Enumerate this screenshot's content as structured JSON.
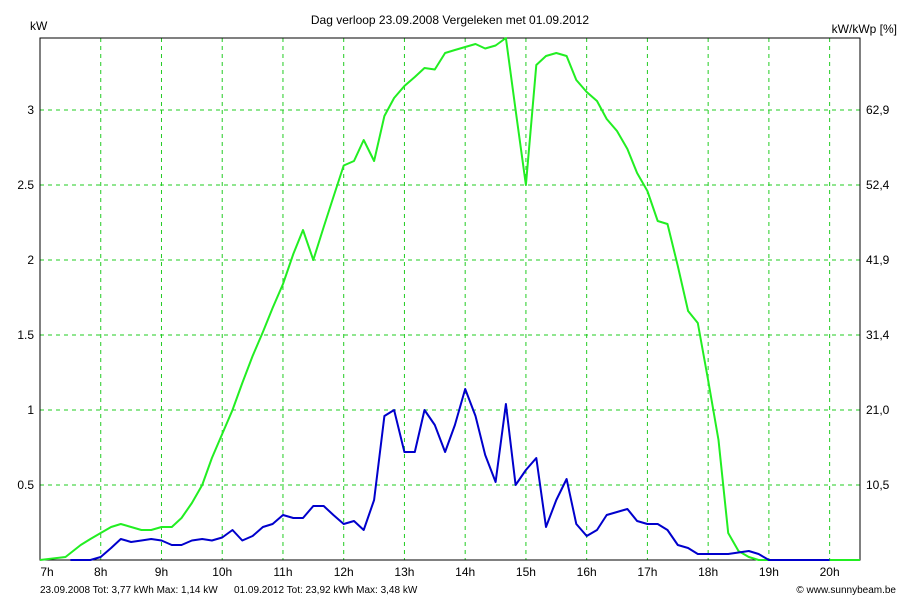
{
  "chart_data": {
    "type": "line",
    "title": "Dag  verloop 23.09.2008    Vergeleken met 01.09.2012",
    "ylabel_left": "kW",
    "ylabel_right": "kW/kWp [%]",
    "xlim": [
      7,
      20.5
    ],
    "ylim": [
      0,
      3.48
    ],
    "grid": true,
    "x_ticks": [
      7,
      8,
      9,
      10,
      11,
      12,
      13,
      14,
      15,
      16,
      17,
      18,
      19,
      20
    ],
    "x_tick_labels": [
      "7h",
      "8h",
      "9h",
      "10h",
      "11h",
      "12h",
      "13h",
      "14h",
      "15h",
      "16h",
      "17h",
      "18h",
      "19h",
      "20h"
    ],
    "y_left_ticks": [
      0.5,
      1,
      1.5,
      2,
      2.5,
      3
    ],
    "y_left_tick_labels": [
      "0.5",
      "1",
      "1.5",
      "2",
      "2.5",
      "3"
    ],
    "y_right_tick_labels": [
      "10,5",
      "21,0",
      "31,4",
      "41,9",
      "52,4",
      "62,9"
    ],
    "series": [
      {
        "name": "01.09.2012",
        "color": "#22ee22",
        "x": [
          7.0,
          7.42,
          7.67,
          7.83,
          8.0,
          8.17,
          8.33,
          8.5,
          8.67,
          8.83,
          9.0,
          9.17,
          9.33,
          9.5,
          9.67,
          9.83,
          10.0,
          10.17,
          10.33,
          10.5,
          10.67,
          10.83,
          11.0,
          11.17,
          11.33,
          11.5,
          11.67,
          11.83,
          12.0,
          12.17,
          12.33,
          12.5,
          12.67,
          12.83,
          13.0,
          13.17,
          13.33,
          13.5,
          13.67,
          13.83,
          14.0,
          14.17,
          14.33,
          14.5,
          14.67,
          14.83,
          15.0,
          15.17,
          15.33,
          15.5,
          15.67,
          15.83,
          16.0,
          16.17,
          16.33,
          16.5,
          16.67,
          16.83,
          17.0,
          17.17,
          17.33,
          17.5,
          17.67,
          17.83,
          18.0,
          18.17,
          18.33,
          18.5,
          18.67,
          18.83,
          19.0,
          19.17,
          19.33,
          19.5,
          19.67,
          19.83,
          20.0,
          20.5
        ],
        "values": [
          0.0,
          0.02,
          0.1,
          0.14,
          0.18,
          0.22,
          0.24,
          0.22,
          0.2,
          0.2,
          0.22,
          0.22,
          0.28,
          0.38,
          0.5,
          0.68,
          0.84,
          1.0,
          1.18,
          1.36,
          1.52,
          1.68,
          1.84,
          2.04,
          2.2,
          2.0,
          2.22,
          2.42,
          2.63,
          2.66,
          2.8,
          2.66,
          2.96,
          3.08,
          3.16,
          3.22,
          3.28,
          3.27,
          3.38,
          3.4,
          3.42,
          3.44,
          3.41,
          3.43,
          3.48,
          3.0,
          2.5,
          3.3,
          3.36,
          3.38,
          3.36,
          3.2,
          3.12,
          3.06,
          2.94,
          2.86,
          2.74,
          2.58,
          2.46,
          2.26,
          2.24,
          1.96,
          1.66,
          1.58,
          1.2,
          0.8,
          0.18,
          0.06,
          0.02,
          0.0,
          0.0,
          0.0,
          0.0,
          0.0,
          0.0,
          0.0,
          0.0,
          0.0
        ]
      },
      {
        "name": "23.09.2008",
        "color": "#0000cc",
        "x": [
          7.5,
          7.83,
          8.0,
          8.17,
          8.33,
          8.5,
          8.67,
          8.83,
          9.0,
          9.17,
          9.33,
          9.5,
          9.67,
          9.83,
          10.0,
          10.17,
          10.33,
          10.5,
          10.67,
          10.83,
          11.0,
          11.17,
          11.33,
          11.5,
          11.67,
          11.83,
          12.0,
          12.17,
          12.33,
          12.5,
          12.67,
          12.83,
          13.0,
          13.17,
          13.33,
          13.5,
          13.67,
          13.83,
          14.0,
          14.17,
          14.33,
          14.5,
          14.67,
          14.83,
          15.0,
          15.17,
          15.33,
          15.5,
          15.67,
          15.83,
          16.0,
          16.17,
          16.33,
          16.5,
          16.67,
          16.83,
          17.0,
          17.17,
          17.33,
          17.5,
          17.67,
          17.83,
          18.0,
          18.17,
          18.33,
          18.5,
          18.67,
          18.83,
          19.0,
          19.17,
          19.33,
          19.5,
          20.0
        ],
        "values": [
          0.0,
          0.0,
          0.02,
          0.08,
          0.14,
          0.12,
          0.13,
          0.14,
          0.13,
          0.1,
          0.1,
          0.13,
          0.14,
          0.13,
          0.15,
          0.2,
          0.13,
          0.16,
          0.22,
          0.24,
          0.3,
          0.28,
          0.28,
          0.36,
          0.36,
          0.3,
          0.24,
          0.26,
          0.2,
          0.4,
          0.96,
          1.0,
          0.72,
          0.72,
          1.0,
          0.9,
          0.72,
          0.9,
          1.14,
          0.96,
          0.7,
          0.52,
          1.04,
          0.5,
          0.6,
          0.68,
          0.22,
          0.4,
          0.54,
          0.24,
          0.16,
          0.2,
          0.3,
          0.32,
          0.34,
          0.26,
          0.24,
          0.24,
          0.2,
          0.1,
          0.08,
          0.04,
          0.04,
          0.04,
          0.04,
          0.05,
          0.06,
          0.04,
          0.0,
          0.0,
          0.0,
          0.0,
          0.0
        ]
      }
    ],
    "legend": {
      "placement": "bottom-left",
      "entry_2008": "23.09.2008 Tot: 3,77 kWh Max: 1,14 kW",
      "entry_2012": "01.09.2012 Tot: 23,92 kWh Max: 3,48 kW",
      "color_2008": "#0000cc",
      "color_2012": "#22ee22"
    },
    "credit": "© www.sunnybeam.be"
  }
}
